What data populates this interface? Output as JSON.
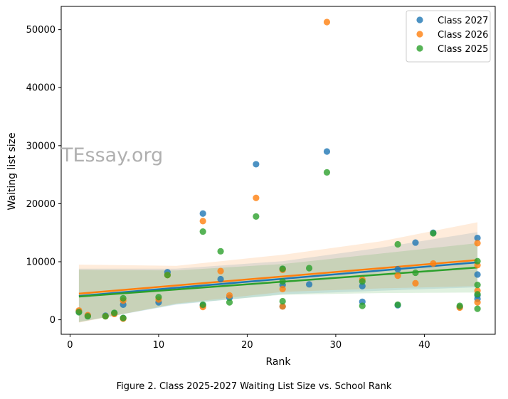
{
  "caption": "Figure 2. Class 2025-2027 Waiting List Size vs. School Rank",
  "watermark": "TEssay.org",
  "chart_data": {
    "type": "scatter",
    "title": "",
    "xlabel": "Rank",
    "ylabel": "Waiting list size",
    "xlim": [
      -1,
      48
    ],
    "ylim": [
      -2500,
      54000
    ],
    "xticks": [
      0,
      10,
      20,
      30,
      40
    ],
    "yticks": [
      0,
      10000,
      20000,
      30000,
      40000,
      50000
    ],
    "grid": false,
    "legend_position": "top-right",
    "series": [
      {
        "name": "Class 2027",
        "color": "#1f77b4",
        "points": [
          [
            1,
            1400
          ],
          [
            2,
            700
          ],
          [
            4,
            700
          ],
          [
            5,
            1100
          ],
          [
            6,
            2600
          ],
          [
            6,
            300
          ],
          [
            10,
            3000
          ],
          [
            11,
            8200
          ],
          [
            15,
            18300
          ],
          [
            15,
            2500
          ],
          [
            17,
            7000
          ],
          [
            18,
            3800
          ],
          [
            21,
            26800
          ],
          [
            24,
            8700
          ],
          [
            24,
            6000
          ],
          [
            24,
            2300
          ],
          [
            27,
            6100
          ],
          [
            29,
            29000
          ],
          [
            33,
            5800
          ],
          [
            33,
            3100
          ],
          [
            37,
            8700
          ],
          [
            37,
            2500
          ],
          [
            39,
            13300
          ],
          [
            41,
            15000
          ],
          [
            44,
            2200
          ],
          [
            46,
            14100
          ],
          [
            46,
            7800
          ],
          [
            46,
            4200
          ],
          [
            46,
            3600
          ]
        ],
        "trend": {
          "x": [
            1,
            46
          ],
          "y": [
            4100,
            9900
          ]
        }
      },
      {
        "name": "Class 2026",
        "color": "#ff7f0e",
        "points": [
          [
            1,
            1600
          ],
          [
            2,
            800
          ],
          [
            4,
            600
          ],
          [
            5,
            1000
          ],
          [
            6,
            3300
          ],
          [
            6,
            200
          ],
          [
            10,
            3500
          ],
          [
            11,
            7700
          ],
          [
            15,
            17000
          ],
          [
            15,
            2200
          ],
          [
            17,
            8400
          ],
          [
            18,
            4200
          ],
          [
            21,
            21000
          ],
          [
            24,
            8600
          ],
          [
            24,
            5300
          ],
          [
            24,
            2300
          ],
          [
            29,
            51300
          ],
          [
            33,
            6900
          ],
          [
            37,
            7600
          ],
          [
            39,
            6300
          ],
          [
            41,
            9700
          ],
          [
            44,
            2100
          ],
          [
            46,
            13200
          ],
          [
            46,
            9400
          ],
          [
            46,
            5000
          ],
          [
            46,
            3000
          ]
        ],
        "trend": {
          "x": [
            1,
            46
          ],
          "y": [
            4500,
            10300
          ]
        }
      },
      {
        "name": "Class 2025",
        "color": "#2ca02c",
        "points": [
          [
            1,
            1300
          ],
          [
            2,
            600
          ],
          [
            4,
            600
          ],
          [
            5,
            1200
          ],
          [
            6,
            3700
          ],
          [
            6,
            300
          ],
          [
            10,
            3900
          ],
          [
            11,
            7700
          ],
          [
            15,
            15200
          ],
          [
            15,
            2600
          ],
          [
            17,
            11800
          ],
          [
            18,
            3000
          ],
          [
            21,
            17800
          ],
          [
            24,
            8800
          ],
          [
            24,
            6600
          ],
          [
            24,
            3200
          ],
          [
            27,
            8900
          ],
          [
            29,
            25400
          ],
          [
            33,
            6600
          ],
          [
            33,
            2400
          ],
          [
            37,
            13000
          ],
          [
            37,
            2600
          ],
          [
            39,
            8100
          ],
          [
            41,
            14900
          ],
          [
            44,
            2400
          ],
          [
            46,
            10100
          ],
          [
            46,
            6000
          ],
          [
            46,
            4400
          ],
          [
            46,
            1900
          ]
        ],
        "trend": {
          "x": [
            1,
            46
          ],
          "y": [
            4000,
            9000
          ]
        }
      }
    ],
    "confidence_bands": [
      {
        "series": "Class 2027",
        "x": [
          1,
          12,
          24,
          35,
          46
        ],
        "low": [
          -400,
          2600,
          4400,
          5000,
          5600
        ],
        "high": [
          8800,
          8800,
          10100,
          12400,
          15100
        ]
      },
      {
        "series": "Class 2026",
        "x": [
          1,
          12,
          24,
          35,
          46
        ],
        "low": [
          -500,
          2800,
          4800,
          5400,
          5800
        ],
        "high": [
          9500,
          9300,
          11200,
          13500,
          16800
        ]
      },
      {
        "series": "Class 2025",
        "x": [
          1,
          12,
          24,
          35,
          46
        ],
        "low": [
          -400,
          2700,
          4300,
          4600,
          4700
        ],
        "high": [
          8600,
          8500,
          9600,
          11400,
          13200
        ]
      }
    ]
  }
}
